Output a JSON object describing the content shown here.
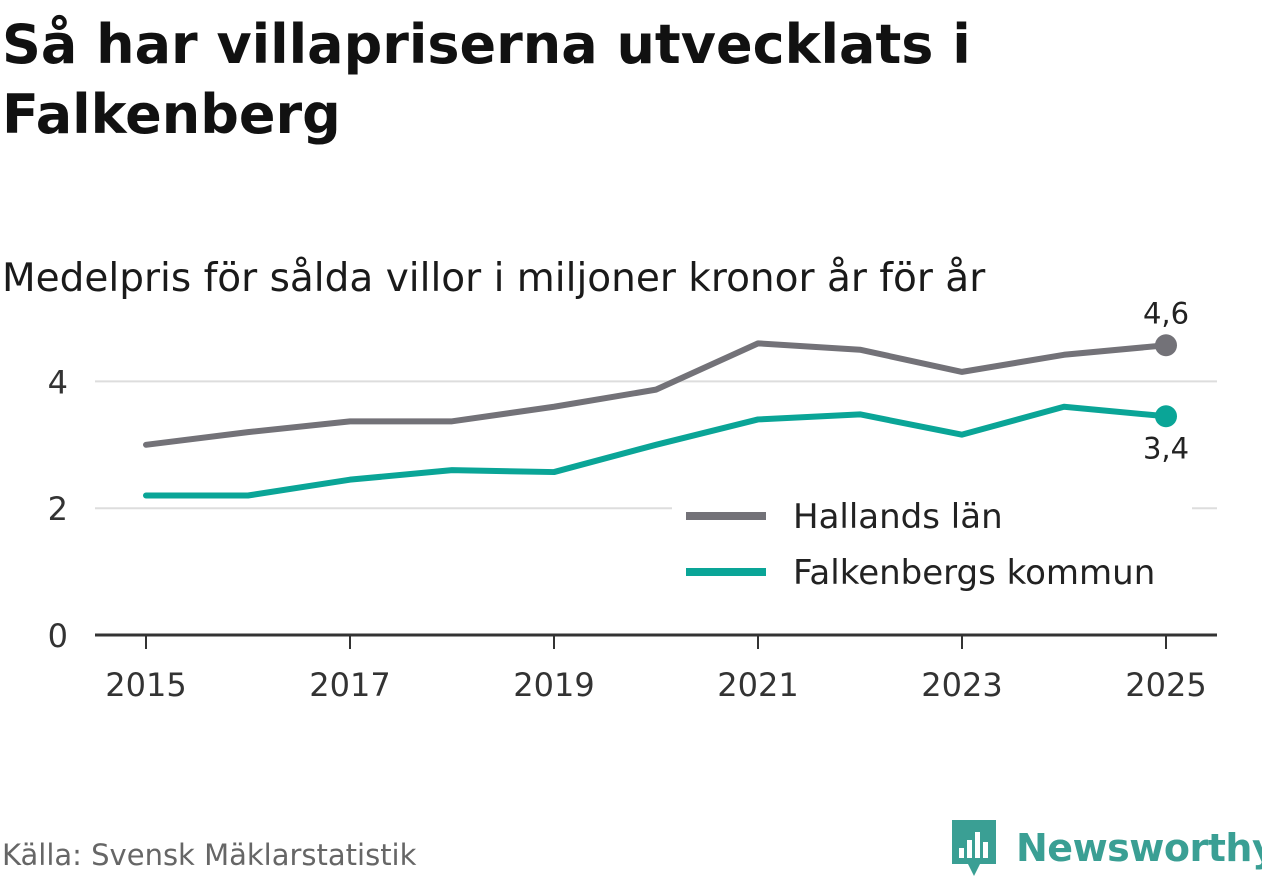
{
  "title": "Så har villapriserna utvecklats i Falkenberg",
  "subtitle": "Medelpris för sålda villor i miljoner kronor år för år",
  "source": "Källa: Svensk Mäklarstatistik",
  "brand": {
    "name": "Newsworthy",
    "icon": "newsworthy-logo-icon"
  },
  "colors": {
    "hallands": "#737278",
    "falkenberg": "#0aa597",
    "brand": "#3a9f94"
  },
  "chart_data": {
    "type": "line",
    "x": [
      2015,
      2016,
      2017,
      2018,
      2019,
      2020,
      2021,
      2022,
      2023,
      2024,
      2025
    ],
    "xticks": [
      "2015",
      "2017",
      "2019",
      "2021",
      "2023",
      "2025"
    ],
    "yticks": [
      "0",
      "2",
      "4"
    ],
    "ylim": [
      0,
      5
    ],
    "grid": true,
    "legend": "center-right",
    "series": [
      {
        "name": "Hallands län",
        "color": "#737278",
        "values": [
          3.0,
          3.2,
          3.37,
          3.37,
          3.6,
          3.87,
          4.6,
          4.5,
          4.15,
          4.42,
          4.57
        ],
        "end_label": "4,6"
      },
      {
        "name": "Falkenbergs kommun",
        "color": "#0aa597",
        "values": [
          2.2,
          2.2,
          2.45,
          2.6,
          2.57,
          3.0,
          3.4,
          3.48,
          3.16,
          3.6,
          3.45
        ],
        "end_label": "3,4"
      }
    ]
  }
}
